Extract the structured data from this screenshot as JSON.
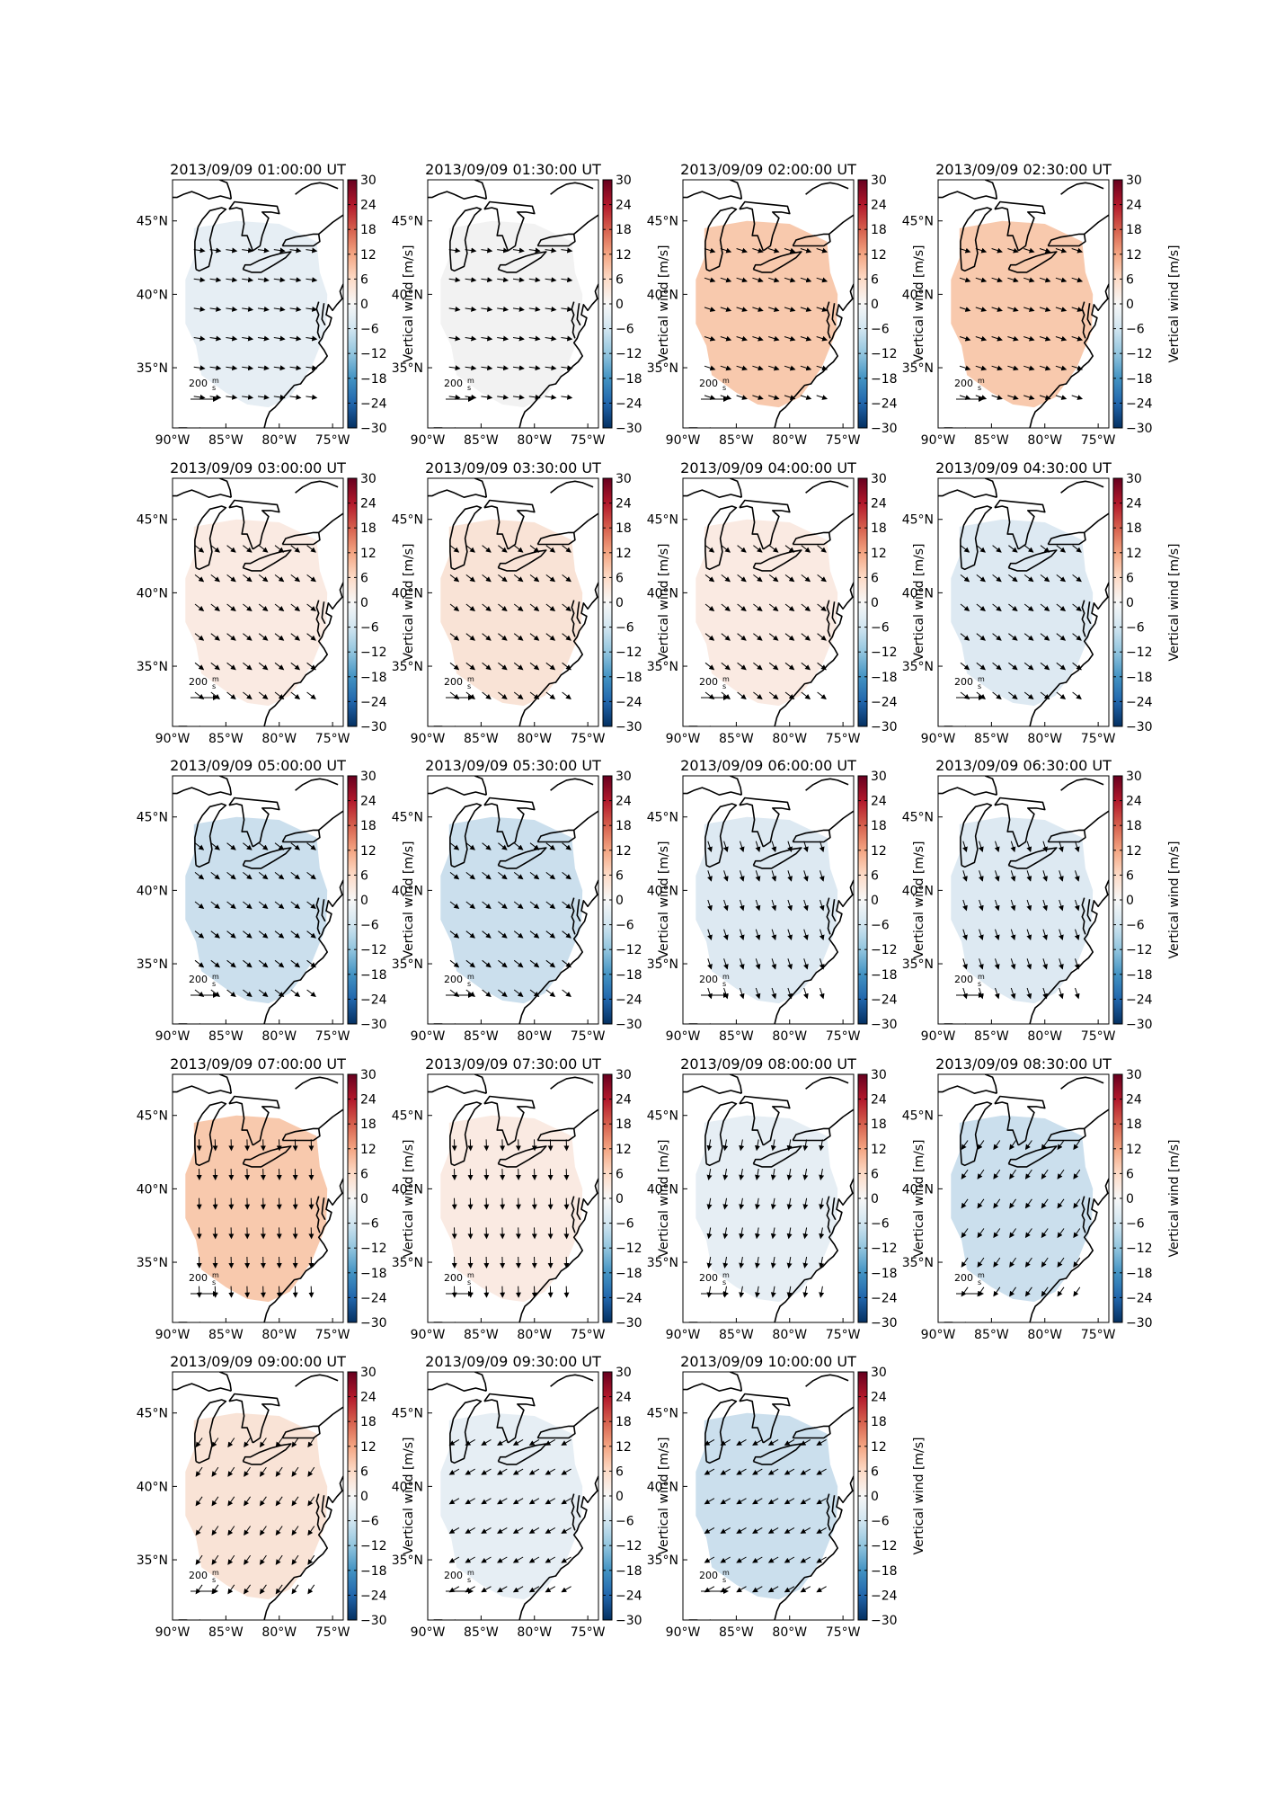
{
  "figure": {
    "colorbar_label": "Vertical wind [m/s]",
    "colormap": "RdBu_r",
    "colorbar_ticks": [
      "30",
      "24",
      "18",
      "12",
      "6",
      "0",
      "−6",
      "−12",
      "−18",
      "−24",
      "−30"
    ],
    "lon_ticks": [
      "90°W",
      "85°W",
      "80°W",
      "75°W"
    ],
    "lat_ticks": [
      "45°N",
      "40°N",
      "35°N"
    ],
    "scale_label": "200",
    "scale_unit_num": "m",
    "scale_unit_den": "s",
    "colors": {
      "strong_pos": "#f8c9ad",
      "mild_pos": "#f9e3d6",
      "weak_pos": "#faeae2",
      "neutral": "#f2f2f2",
      "weak_neg": "#e6eef4",
      "mild_neg": "#dde9f2",
      "strong_neg": "#cbdfed"
    }
  },
  "panels": [
    {
      "title": "2013/09/09 01:00:00 UT",
      "vertical_wind_level": "weak_neg",
      "arrow_direction": "east, slightly south"
    },
    {
      "title": "2013/09/09 01:30:00 UT",
      "vertical_wind_level": "neutral",
      "arrow_direction": "east, slightly south"
    },
    {
      "title": "2013/09/09 02:00:00 UT",
      "vertical_wind_level": "strong_pos",
      "arrow_direction": "east-southeast"
    },
    {
      "title": "2013/09/09 02:30:00 UT",
      "vertical_wind_level": "strong_pos",
      "arrow_direction": "east-southeast"
    },
    {
      "title": "2013/09/09 03:00:00 UT",
      "vertical_wind_level": "weak_pos",
      "arrow_direction": "southeast"
    },
    {
      "title": "2013/09/09 03:30:00 UT",
      "vertical_wind_level": "mild_pos",
      "arrow_direction": "southeast"
    },
    {
      "title": "2013/09/09 04:00:00 UT",
      "vertical_wind_level": "weak_pos",
      "arrow_direction": "southeast"
    },
    {
      "title": "2013/09/09 04:30:00 UT",
      "vertical_wind_level": "mild_neg",
      "arrow_direction": "southeast"
    },
    {
      "title": "2013/09/09 05:00:00 UT",
      "vertical_wind_level": "strong_neg",
      "arrow_direction": "southeast"
    },
    {
      "title": "2013/09/09 05:30:00 UT",
      "vertical_wind_level": "strong_neg",
      "arrow_direction": "southeast"
    },
    {
      "title": "2013/09/09 06:00:00 UT",
      "vertical_wind_level": "mild_neg",
      "arrow_direction": "south-southeast"
    },
    {
      "title": "2013/09/09 06:30:00 UT",
      "vertical_wind_level": "mild_neg",
      "arrow_direction": "south-southeast"
    },
    {
      "title": "2013/09/09 07:00:00 UT",
      "vertical_wind_level": "strong_pos",
      "arrow_direction": "south"
    },
    {
      "title": "2013/09/09 07:30:00 UT",
      "vertical_wind_level": "weak_pos",
      "arrow_direction": "south"
    },
    {
      "title": "2013/09/09 08:00:00 UT",
      "vertical_wind_level": "weak_neg",
      "arrow_direction": "south-southwest"
    },
    {
      "title": "2013/09/09 08:30:00 UT",
      "vertical_wind_level": "strong_neg",
      "arrow_direction": "southwest"
    },
    {
      "title": "2013/09/09 09:00:00 UT",
      "vertical_wind_level": "mild_pos",
      "arrow_direction": "southwest"
    },
    {
      "title": "2013/09/09 09:30:00 UT",
      "vertical_wind_level": "weak_neg",
      "arrow_direction": "west-southwest"
    },
    {
      "title": "2013/09/09 10:00:00 UT",
      "vertical_wind_level": "strong_neg",
      "arrow_direction": "west-southwest"
    }
  ]
}
